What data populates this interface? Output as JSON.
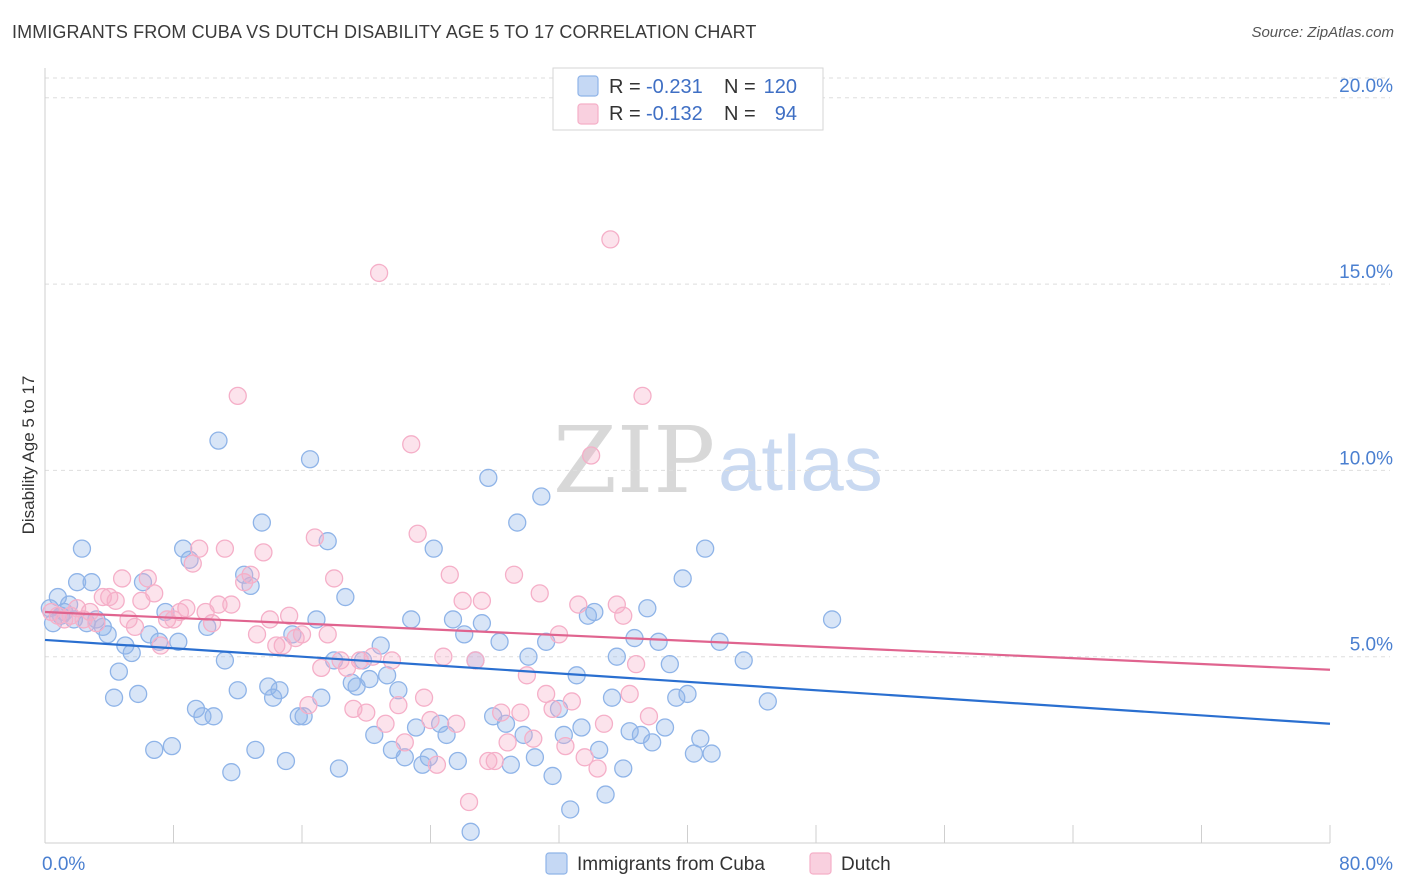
{
  "header": {
    "title": "IMMIGRANTS FROM CUBA VS DUTCH DISABILITY AGE 5 TO 17 CORRELATION CHART",
    "source": "Source: ZipAtlas.com"
  },
  "watermark": {
    "zip": "ZIP",
    "atlas": "atlas"
  },
  "chart_data": {
    "type": "scatter",
    "title": "IMMIGRANTS FROM CUBA VS DUTCH DISABILITY AGE 5 TO 17 CORRELATION CHART",
    "ylabel": "Disability Age 5 to 17",
    "xlabel": "",
    "xlim": [
      0,
      80
    ],
    "ylim": [
      0,
      20.8
    ],
    "x_tick_labels": [
      "0.0%",
      "80.0%"
    ],
    "y_ticks": [
      5,
      10,
      15,
      20
    ],
    "y_tick_labels": [
      "5.0%",
      "10.0%",
      "15.0%",
      "20.0%"
    ],
    "grid": true,
    "legend": {
      "placement": "top-center",
      "entries": [
        {
          "r_label": "R =",
          "r_value": "-0.231",
          "n_label": "N =",
          "n_value": "120"
        },
        {
          "r_label": "R =",
          "r_value": "-0.132",
          "n_label": "N =",
          "n_value": "94"
        }
      ]
    },
    "series": [
      {
        "name": "Immigrants from Cuba",
        "color": "#8fb4e8",
        "line_color": "#2a6fd0",
        "trend": {
          "x": [
            0,
            80
          ],
          "y": [
            5.45,
            3.2
          ]
        },
        "points": [
          [
            0.3,
            6.3
          ],
          [
            0.5,
            5.9
          ],
          [
            0.8,
            6.6
          ],
          [
            1.0,
            6.1
          ],
          [
            1.2,
            6.2
          ],
          [
            1.5,
            6.4
          ],
          [
            1.8,
            6.0
          ],
          [
            2.0,
            7.0
          ],
          [
            2.3,
            7.9
          ],
          [
            2.6,
            5.9
          ],
          [
            2.9,
            7.0
          ],
          [
            3.2,
            6.0
          ],
          [
            3.6,
            5.8
          ],
          [
            3.9,
            5.6
          ],
          [
            4.3,
            3.9
          ],
          [
            4.6,
            4.6
          ],
          [
            5.0,
            5.3
          ],
          [
            5.4,
            5.1
          ],
          [
            5.8,
            4.0
          ],
          [
            6.1,
            7.0
          ],
          [
            6.5,
            5.6
          ],
          [
            6.8,
            2.5
          ],
          [
            7.1,
            5.4
          ],
          [
            7.5,
            6.2
          ],
          [
            7.9,
            2.6
          ],
          [
            8.3,
            5.4
          ],
          [
            8.6,
            7.9
          ],
          [
            9.0,
            7.6
          ],
          [
            9.4,
            3.6
          ],
          [
            9.8,
            3.4
          ],
          [
            10.1,
            5.8
          ],
          [
            10.5,
            3.4
          ],
          [
            10.8,
            10.8
          ],
          [
            11.2,
            4.9
          ],
          [
            11.6,
            1.9
          ],
          [
            12.0,
            4.1
          ],
          [
            12.4,
            7.2
          ],
          [
            12.8,
            6.9
          ],
          [
            13.1,
            2.5
          ],
          [
            13.5,
            8.6
          ],
          [
            13.9,
            4.2
          ],
          [
            14.2,
            3.9
          ],
          [
            14.6,
            4.1
          ],
          [
            15.0,
            2.2
          ],
          [
            15.4,
            5.6
          ],
          [
            15.8,
            3.4
          ],
          [
            16.1,
            3.4
          ],
          [
            16.5,
            10.3
          ],
          [
            16.9,
            6.0
          ],
          [
            17.2,
            3.9
          ],
          [
            17.6,
            8.1
          ],
          [
            18.0,
            4.9
          ],
          [
            18.3,
            2.0
          ],
          [
            18.7,
            6.6
          ],
          [
            19.1,
            4.3
          ],
          [
            19.4,
            4.2
          ],
          [
            19.8,
            4.9
          ],
          [
            20.2,
            4.4
          ],
          [
            20.5,
            2.9
          ],
          [
            20.9,
            5.3
          ],
          [
            21.3,
            4.5
          ],
          [
            21.6,
            2.5
          ],
          [
            22.0,
            4.1
          ],
          [
            22.4,
            2.3
          ],
          [
            22.8,
            6.0
          ],
          [
            23.1,
            3.1
          ],
          [
            23.5,
            2.1
          ],
          [
            23.9,
            2.3
          ],
          [
            24.2,
            7.9
          ],
          [
            24.6,
            3.2
          ],
          [
            25.0,
            2.9
          ],
          [
            25.4,
            6.0
          ],
          [
            25.7,
            2.2
          ],
          [
            26.1,
            5.6
          ],
          [
            26.5,
            0.3
          ],
          [
            26.8,
            4.9
          ],
          [
            27.2,
            5.9
          ],
          [
            27.6,
            9.8
          ],
          [
            27.9,
            3.4
          ],
          [
            28.3,
            5.4
          ],
          [
            28.7,
            3.2
          ],
          [
            29.0,
            2.1
          ],
          [
            29.4,
            8.6
          ],
          [
            29.8,
            2.9
          ],
          [
            30.1,
            5.0
          ],
          [
            30.5,
            2.3
          ],
          [
            30.9,
            9.3
          ],
          [
            31.2,
            5.4
          ],
          [
            31.6,
            1.8
          ],
          [
            32.0,
            3.6
          ],
          [
            32.3,
            2.9
          ],
          [
            32.7,
            0.9
          ],
          [
            33.1,
            4.5
          ],
          [
            33.4,
            3.1
          ],
          [
            33.8,
            6.1
          ],
          [
            34.2,
            6.2
          ],
          [
            34.5,
            2.5
          ],
          [
            34.9,
            1.3
          ],
          [
            35.3,
            3.9
          ],
          [
            35.6,
            5.0
          ],
          [
            36.0,
            2.0
          ],
          [
            36.4,
            3.0
          ],
          [
            36.7,
            5.5
          ],
          [
            37.1,
            2.9
          ],
          [
            37.5,
            6.3
          ],
          [
            37.8,
            2.7
          ],
          [
            38.2,
            5.4
          ],
          [
            38.6,
            3.1
          ],
          [
            38.9,
            4.8
          ],
          [
            39.3,
            3.9
          ],
          [
            39.7,
            7.1
          ],
          [
            40.0,
            4.0
          ],
          [
            40.4,
            2.4
          ],
          [
            40.8,
            2.8
          ],
          [
            41.1,
            7.9
          ],
          [
            41.5,
            2.4
          ],
          [
            42.0,
            5.4
          ],
          [
            43.5,
            4.9
          ],
          [
            45.0,
            3.8
          ],
          [
            49.0,
            6.0
          ]
        ]
      },
      {
        "name": "Dutch",
        "color": "#f5afc8",
        "line_color": "#e0648f",
        "trend": {
          "x": [
            0,
            80
          ],
          "y": [
            6.2,
            4.65
          ]
        },
        "points": [
          [
            0.4,
            6.2
          ],
          [
            0.8,
            6.1
          ],
          [
            1.2,
            6.0
          ],
          [
            1.6,
            6.1
          ],
          [
            2.0,
            6.3
          ],
          [
            2.4,
            6.0
          ],
          [
            2.8,
            6.2
          ],
          [
            3.2,
            5.9
          ],
          [
            3.6,
            6.6
          ],
          [
            4.0,
            6.6
          ],
          [
            4.4,
            6.5
          ],
          [
            4.8,
            7.1
          ],
          [
            5.2,
            6.0
          ],
          [
            5.6,
            5.8
          ],
          [
            6.0,
            6.5
          ],
          [
            6.4,
            7.1
          ],
          [
            6.8,
            6.7
          ],
          [
            7.2,
            5.3
          ],
          [
            7.6,
            6.0
          ],
          [
            8.0,
            6.0
          ],
          [
            8.4,
            6.2
          ],
          [
            8.8,
            6.3
          ],
          [
            9.2,
            7.5
          ],
          [
            9.6,
            7.9
          ],
          [
            10.0,
            6.2
          ],
          [
            10.4,
            5.9
          ],
          [
            10.8,
            6.4
          ],
          [
            11.2,
            7.9
          ],
          [
            11.6,
            6.4
          ],
          [
            12.0,
            12.0
          ],
          [
            12.4,
            7.0
          ],
          [
            12.8,
            7.2
          ],
          [
            13.2,
            5.6
          ],
          [
            13.6,
            7.8
          ],
          [
            14.0,
            6.0
          ],
          [
            14.4,
            5.3
          ],
          [
            14.8,
            5.3
          ],
          [
            15.2,
            6.1
          ],
          [
            15.6,
            5.5
          ],
          [
            16.0,
            5.6
          ],
          [
            16.4,
            3.7
          ],
          [
            16.8,
            8.2
          ],
          [
            17.2,
            4.7
          ],
          [
            17.6,
            5.6
          ],
          [
            18.0,
            7.1
          ],
          [
            18.4,
            4.9
          ],
          [
            18.8,
            4.7
          ],
          [
            19.2,
            3.6
          ],
          [
            19.6,
            4.9
          ],
          [
            20.0,
            3.5
          ],
          [
            20.4,
            5.0
          ],
          [
            20.8,
            15.3
          ],
          [
            21.2,
            3.2
          ],
          [
            21.6,
            4.9
          ],
          [
            22.0,
            3.7
          ],
          [
            22.4,
            2.7
          ],
          [
            22.8,
            10.7
          ],
          [
            23.2,
            8.3
          ],
          [
            23.6,
            3.9
          ],
          [
            24.0,
            3.3
          ],
          [
            24.4,
            2.1
          ],
          [
            24.8,
            5.0
          ],
          [
            25.2,
            7.2
          ],
          [
            25.6,
            3.2
          ],
          [
            26.0,
            6.5
          ],
          [
            26.4,
            1.1
          ],
          [
            26.8,
            4.9
          ],
          [
            27.2,
            6.5
          ],
          [
            27.6,
            2.2
          ],
          [
            28.0,
            2.2
          ],
          [
            28.4,
            3.5
          ],
          [
            28.8,
            2.7
          ],
          [
            29.2,
            7.2
          ],
          [
            29.6,
            3.5
          ],
          [
            30.0,
            4.5
          ],
          [
            30.4,
            2.8
          ],
          [
            30.8,
            6.7
          ],
          [
            31.2,
            4.0
          ],
          [
            31.6,
            3.6
          ],
          [
            32.0,
            5.6
          ],
          [
            32.4,
            2.6
          ],
          [
            32.8,
            3.8
          ],
          [
            33.2,
            6.4
          ],
          [
            33.6,
            2.3
          ],
          [
            34.0,
            10.4
          ],
          [
            34.4,
            2.0
          ],
          [
            34.8,
            3.2
          ],
          [
            35.2,
            16.2
          ],
          [
            35.6,
            6.4
          ],
          [
            36.0,
            6.1
          ],
          [
            36.4,
            4.0
          ],
          [
            36.8,
            4.8
          ],
          [
            37.2,
            12.0
          ],
          [
            37.6,
            3.4
          ]
        ]
      }
    ]
  },
  "bottom_legend": [
    {
      "label": "Immigrants from Cuba"
    },
    {
      "label": "Dutch"
    }
  ],
  "colors": {
    "blue_fill": "#8fb4e8",
    "pink_fill": "#f5afc8",
    "blue_line": "#2a6fd0",
    "pink_line": "#e0648f",
    "tick_text": "#4a7fd0"
  }
}
